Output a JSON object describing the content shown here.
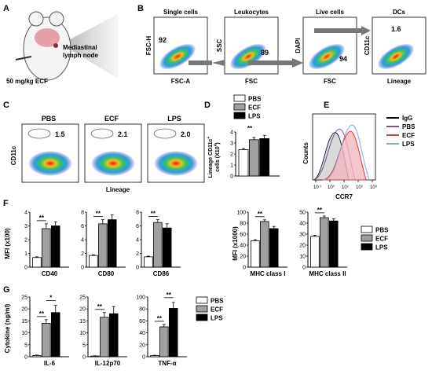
{
  "panels": {
    "A": {
      "letter": "A",
      "node_label_1": "Mediastinal",
      "node_label_2": "lymph node",
      "dose": "50 mg/kg ECF"
    },
    "B": {
      "letter": "B",
      "plots": [
        {
          "title": "Single cells",
          "xlabel": "FSC-A",
          "ylabel": "FSC-H",
          "pct": "92"
        },
        {
          "title": "Leukocytes",
          "xlabel": "FSC",
          "ylabel": "SSC",
          "pct": "89"
        },
        {
          "title": "Live cells",
          "xlabel": "FSC",
          "ylabel": "DAPI",
          "pct": "94"
        },
        {
          "title": "DCs",
          "xlabel": "Lineage",
          "ylabel": "CD11c",
          "pct": "1.6"
        }
      ]
    },
    "C": {
      "letter": "C",
      "ylabel": "CD11c",
      "xlabel": "Lineage",
      "plots": [
        {
          "title": "PBS",
          "pct": "1.5"
        },
        {
          "title": "ECF",
          "pct": "2.1"
        },
        {
          "title": "LPS",
          "pct": "2.0"
        }
      ]
    },
    "D": {
      "letter": "D",
      "ylabel_1": "Lineage CD11c",
      "ylabel_sup": "+",
      "ylabel_2": "cells (X10",
      "ylabel_exp": "4",
      "ylabel_3": ")",
      "sig": "**"
    },
    "E": {
      "letter": "E",
      "xlabel": "CCR7",
      "ylabel": "Counts",
      "legend": [
        "IgG",
        "PBS",
        "ECF",
        "LPS"
      ],
      "ticks": [
        "10",
        "10",
        "10",
        "10",
        "10"
      ],
      "tick_exp": [
        "-1",
        "0",
        "1",
        "2",
        "3"
      ]
    },
    "F": {
      "letter": "F",
      "ylabel_left": "MFI (x100)",
      "ylabel_right": "MFI (x1000)"
    },
    "G": {
      "letter": "G",
      "ylabel": "Cytokine (ng/ml)"
    }
  },
  "colors": {
    "PBS": "#ffffff",
    "ECF": "#a0a0a0",
    "LPS": "#000000",
    "IgG_line": "#000000",
    "PBS_line": "#7a4fa0",
    "ECF_line": "#e03a3a",
    "LPS_line": "#86a9d8"
  },
  "legend_labels": [
    "PBS",
    "ECF",
    "LPS"
  ],
  "chart_data": [
    {
      "type": "bar",
      "panel": "D",
      "categories": [
        "PBS",
        "ECF",
        "LPS"
      ],
      "values": [
        2.4,
        3.3,
        3.4
      ],
      "errors": [
        0.1,
        0.2,
        0.3
      ],
      "ylim": [
        0,
        4
      ],
      "yticks": [
        "0",
        "1",
        "2",
        "3",
        "4"
      ]
    },
    {
      "type": "bar",
      "panel": "F",
      "xlabel": "CD40",
      "categories": [
        "PBS",
        "ECF",
        "LPS"
      ],
      "values": [
        0.7,
        2.8,
        3.0
      ],
      "errors": [
        0.05,
        0.35,
        0.3
      ],
      "ylim": [
        0,
        4
      ],
      "yticks": [
        "0",
        "1",
        "2",
        "3",
        "4"
      ],
      "sig": "**"
    },
    {
      "type": "bar",
      "panel": "F",
      "xlabel": "CD80",
      "categories": [
        "PBS",
        "ECF",
        "LPS"
      ],
      "values": [
        1.7,
        6.3,
        6.9
      ],
      "errors": [
        0.1,
        0.6,
        0.7
      ],
      "ylim": [
        0,
        8
      ],
      "yticks": [
        "0",
        "2",
        "4",
        "6",
        "8"
      ],
      "sig": "**"
    },
    {
      "type": "bar",
      "panel": "F",
      "xlabel": "CD86",
      "categories": [
        "PBS",
        "ECF",
        "LPS"
      ],
      "values": [
        1.5,
        6.5,
        5.7
      ],
      "errors": [
        0.1,
        0.4,
        0.6
      ],
      "ylim": [
        0,
        8
      ],
      "yticks": [
        "0",
        "2",
        "4",
        "6",
        "8"
      ],
      "sig": "**"
    },
    {
      "type": "bar",
      "panel": "F",
      "xlabel": "MHC class I",
      "categories": [
        "PBS",
        "ECF",
        "LPS"
      ],
      "values": [
        48,
        83,
        70
      ],
      "errors": [
        2,
        3,
        4
      ],
      "ylim": [
        0,
        100
      ],
      "yticks": [
        "0",
        "20",
        "40",
        "60",
        "80",
        "100"
      ],
      "sig": "**"
    },
    {
      "type": "bar",
      "panel": "F",
      "xlabel": "MHC class II",
      "categories": [
        "PBS",
        "ECF",
        "LPS"
      ],
      "values": [
        28,
        45,
        42
      ],
      "errors": [
        1,
        1.5,
        2
      ],
      "ylim": [
        0,
        50
      ],
      "yticks": [
        "0",
        "10",
        "20",
        "30",
        "40",
        "50"
      ],
      "sig": "**"
    },
    {
      "type": "bar",
      "panel": "G",
      "xlabel": "IL-6",
      "categories": [
        "PBS",
        "ECF",
        "LPS"
      ],
      "values": [
        0.5,
        14,
        18.5
      ],
      "errors": [
        0.2,
        1.5,
        3
      ],
      "ylim": [
        0,
        25
      ],
      "yticks": [
        "0",
        "5",
        "10",
        "15",
        "20",
        "25"
      ],
      "sig": [
        "**",
        "*"
      ]
    },
    {
      "type": "bar",
      "panel": "G",
      "xlabel": "IL-12p70",
      "categories": [
        "PBS",
        "ECF",
        "LPS"
      ],
      "values": [
        0.3,
        16.5,
        18
      ],
      "errors": [
        0.1,
        2,
        3
      ],
      "ylim": [
        0,
        25
      ],
      "yticks": [
        "0",
        "5",
        "10",
        "15",
        "20",
        "25"
      ],
      "sig": [
        "**"
      ]
    },
    {
      "type": "bar",
      "panel": "G",
      "xlabel": "TNF-α",
      "categories": [
        "PBS",
        "ECF",
        "LPS"
      ],
      "values": [
        2,
        50,
        81
      ],
      "errors": [
        0.5,
        4,
        10
      ],
      "ylim": [
        0,
        100
      ],
      "yticks": [
        "0",
        "20",
        "40",
        "60",
        "80",
        "100"
      ],
      "sig": [
        "**",
        "**"
      ]
    }
  ]
}
